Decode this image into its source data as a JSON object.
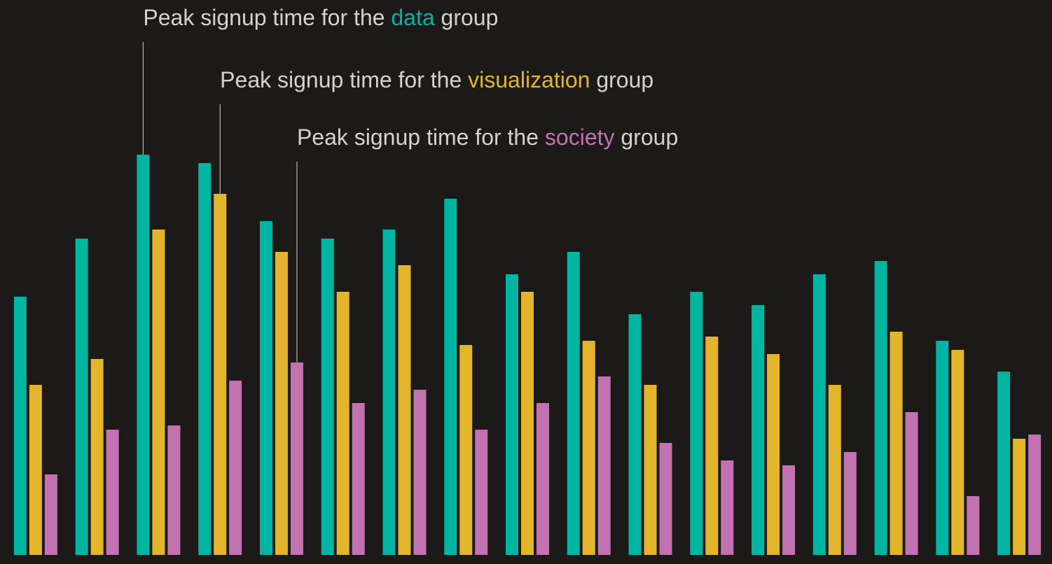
{
  "chart_data": {
    "type": "bar",
    "categories": [
      null,
      null,
      null,
      null,
      null,
      null,
      null,
      null,
      null,
      null,
      null,
      null,
      null,
      null,
      null,
      null,
      null
    ],
    "series": [
      {
        "name": "data",
        "color": "#00b5a1",
        "values": [
          369,
          452,
          572,
          560,
          477,
          452,
          465,
          509,
          401,
          433,
          344,
          376,
          357,
          401,
          420,
          306,
          262
        ]
      },
      {
        "name": "visualization",
        "color": "#e3b52c",
        "values": [
          243,
          280,
          465,
          516,
          433,
          376,
          414,
          300,
          376,
          306,
          243,
          312,
          287,
          243,
          319,
          293,
          166
        ]
      },
      {
        "name": "society",
        "color": "#c271b1",
        "values": [
          115,
          179,
          185,
          249,
          275,
          217,
          236,
          179,
          217,
          255,
          160,
          135,
          128,
          147,
          204,
          84,
          172
        ]
      }
    ],
    "ylim": [
      0,
      600
    ],
    "annotations": [
      {
        "prefix": "Peak signup time for the ",
        "suffix": " group"
      },
      {
        "prefix": "Peak signup time for the ",
        "suffix": " group"
      },
      {
        "prefix": "Peak signup time for the ",
        "suffix": " group"
      }
    ]
  }
}
